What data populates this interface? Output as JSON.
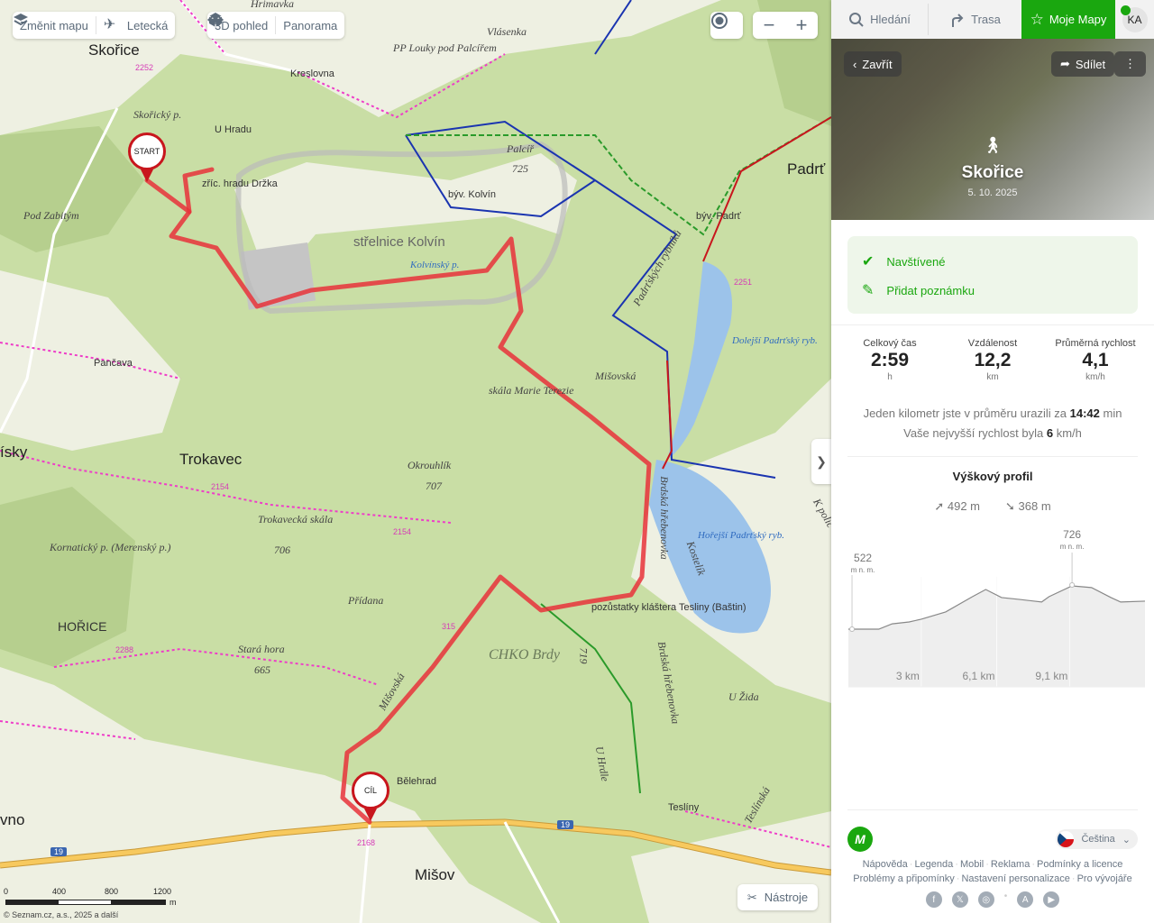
{
  "map_toolbar": {
    "change_map": "Změnit mapu",
    "aerial": "Letecká",
    "view_3d": "3D pohled",
    "panorama": "Panorama"
  },
  "map_controls": {
    "zoom_out": "−",
    "zoom_in": "+",
    "tools": "Nástroje",
    "expand": "❯"
  },
  "markers": {
    "start": "START",
    "finish": "CÍL"
  },
  "map_labels": [
    "Skořice",
    "U Hradu",
    "Pod Zabitým",
    "zříc. hradu Držka",
    "střelnice Kolvín",
    "Kolvínský p.",
    "Palcíř",
    "725",
    "býv. Kolvín",
    "PP Louky pod Palcířem",
    "Kreslovna",
    "Hrimavka",
    "Vlásenka",
    "Padrť",
    "býv. Padrť",
    "Dolejší Padrťský ryb.",
    "Pančava",
    "skála Marie Terezie",
    "Mišovská",
    "Trokavec",
    "Okrouhlík",
    "707",
    "Trokavecká skála",
    "706",
    "Kornatický p. (Merenský p.)",
    "Přídanа",
    "HOŘICE",
    "Stará hora",
    "665",
    "CHKO Brdy",
    "Hořejší Padrťský ryb.",
    "pozůstatky kláštera Tesliny (Baštin)",
    "719",
    "Brdská hřebenovka",
    "Brdská hřebenovka",
    "U Hrdle",
    "U Žida",
    "Bělehrad",
    "Teslíny",
    "Mišov",
    "ísky",
    "vno",
    "Skořický p.",
    "Kostelík",
    "Padrťských rybníků",
    "Mišovská",
    "Teslínská",
    "K políc"
  ],
  "road_numbers": [
    "19",
    "19",
    "2154",
    "2154",
    "2252",
    "2251",
    "2288",
    "2168",
    "315"
  ],
  "scale": {
    "ticks": [
      "0",
      "400",
      "800",
      "1200"
    ],
    "unit": "m",
    "copyright": "© Seznam.cz, a.s., 2025 a další"
  },
  "panel": {
    "tabs": [
      {
        "label": "Hledání",
        "icon": "search-icon"
      },
      {
        "label": "Trasa",
        "icon": "route-icon"
      },
      {
        "label": "Moje Mapy",
        "icon": "star-icon",
        "active": true
      }
    ],
    "avatar": "KA",
    "close": "Zavřít",
    "share": "Sdílet",
    "title": "Skořice",
    "date": "5. 10. 2025",
    "activity_icon": "hiking-icon",
    "visited": "Navštívené",
    "add_note": "Přidat poznámku",
    "stats": [
      {
        "label": "Celkový čas",
        "value": "2:59",
        "unit": "h"
      },
      {
        "label": "Vzdálenost",
        "value": "12,2",
        "unit": "km"
      },
      {
        "label": "Průměrná rychlost",
        "value": "4,1",
        "unit": "km/h"
      }
    ],
    "pace_text": "Jeden kilometr jste v průměru urazili za",
    "pace_value": "14:42",
    "pace_unit": "min",
    "max_speed_text": "Vaše nejvyšší rychlost byla",
    "max_speed_value": "6",
    "max_speed_unit": "km/h",
    "profile_title": "Výškový profil",
    "ascent": "492 m",
    "descent": "368 m",
    "language": "Čeština",
    "footer_links": [
      "Nápověda",
      "Legenda",
      "Mobil",
      "Reklama",
      "Podmínky a licence",
      "Problémy a připomínky",
      "Nastavení personalizace",
      "Pro vývojáře"
    ],
    "social": [
      "facebook-icon",
      "x-icon",
      "instagram-icon",
      "app-store-icon",
      "google-play-icon"
    ]
  },
  "chart_data": {
    "type": "area",
    "xlabel": "km",
    "ylabel": "m n. m.",
    "x_ticks": [
      "3 km",
      "6,1 km",
      "9,1 km"
    ],
    "min_label": {
      "value": "522",
      "unit": "m n. m."
    },
    "max_label": {
      "value": "726",
      "unit": "m n. m."
    },
    "xlim": [
      0,
      12.2
    ],
    "x": [
      0,
      0.15,
      1.25,
      1.8,
      2.5,
      3.0,
      4.0,
      5.1,
      5.65,
      6.3,
      7.05,
      7.95,
      8.25,
      9.2,
      10.0,
      10.8,
      11.2,
      12.2
    ],
    "y": [
      522,
      522,
      522,
      547,
      556,
      569,
      603,
      675,
      709,
      671,
      662,
      650,
      675,
      726,
      718,
      671,
      650,
      654
    ],
    "colors": {
      "line": "#888888",
      "fill": "#eeeeee"
    }
  },
  "colors": {
    "accent": "#1aa70f",
    "route": "#e8333a",
    "marker": "#c8161d"
  }
}
